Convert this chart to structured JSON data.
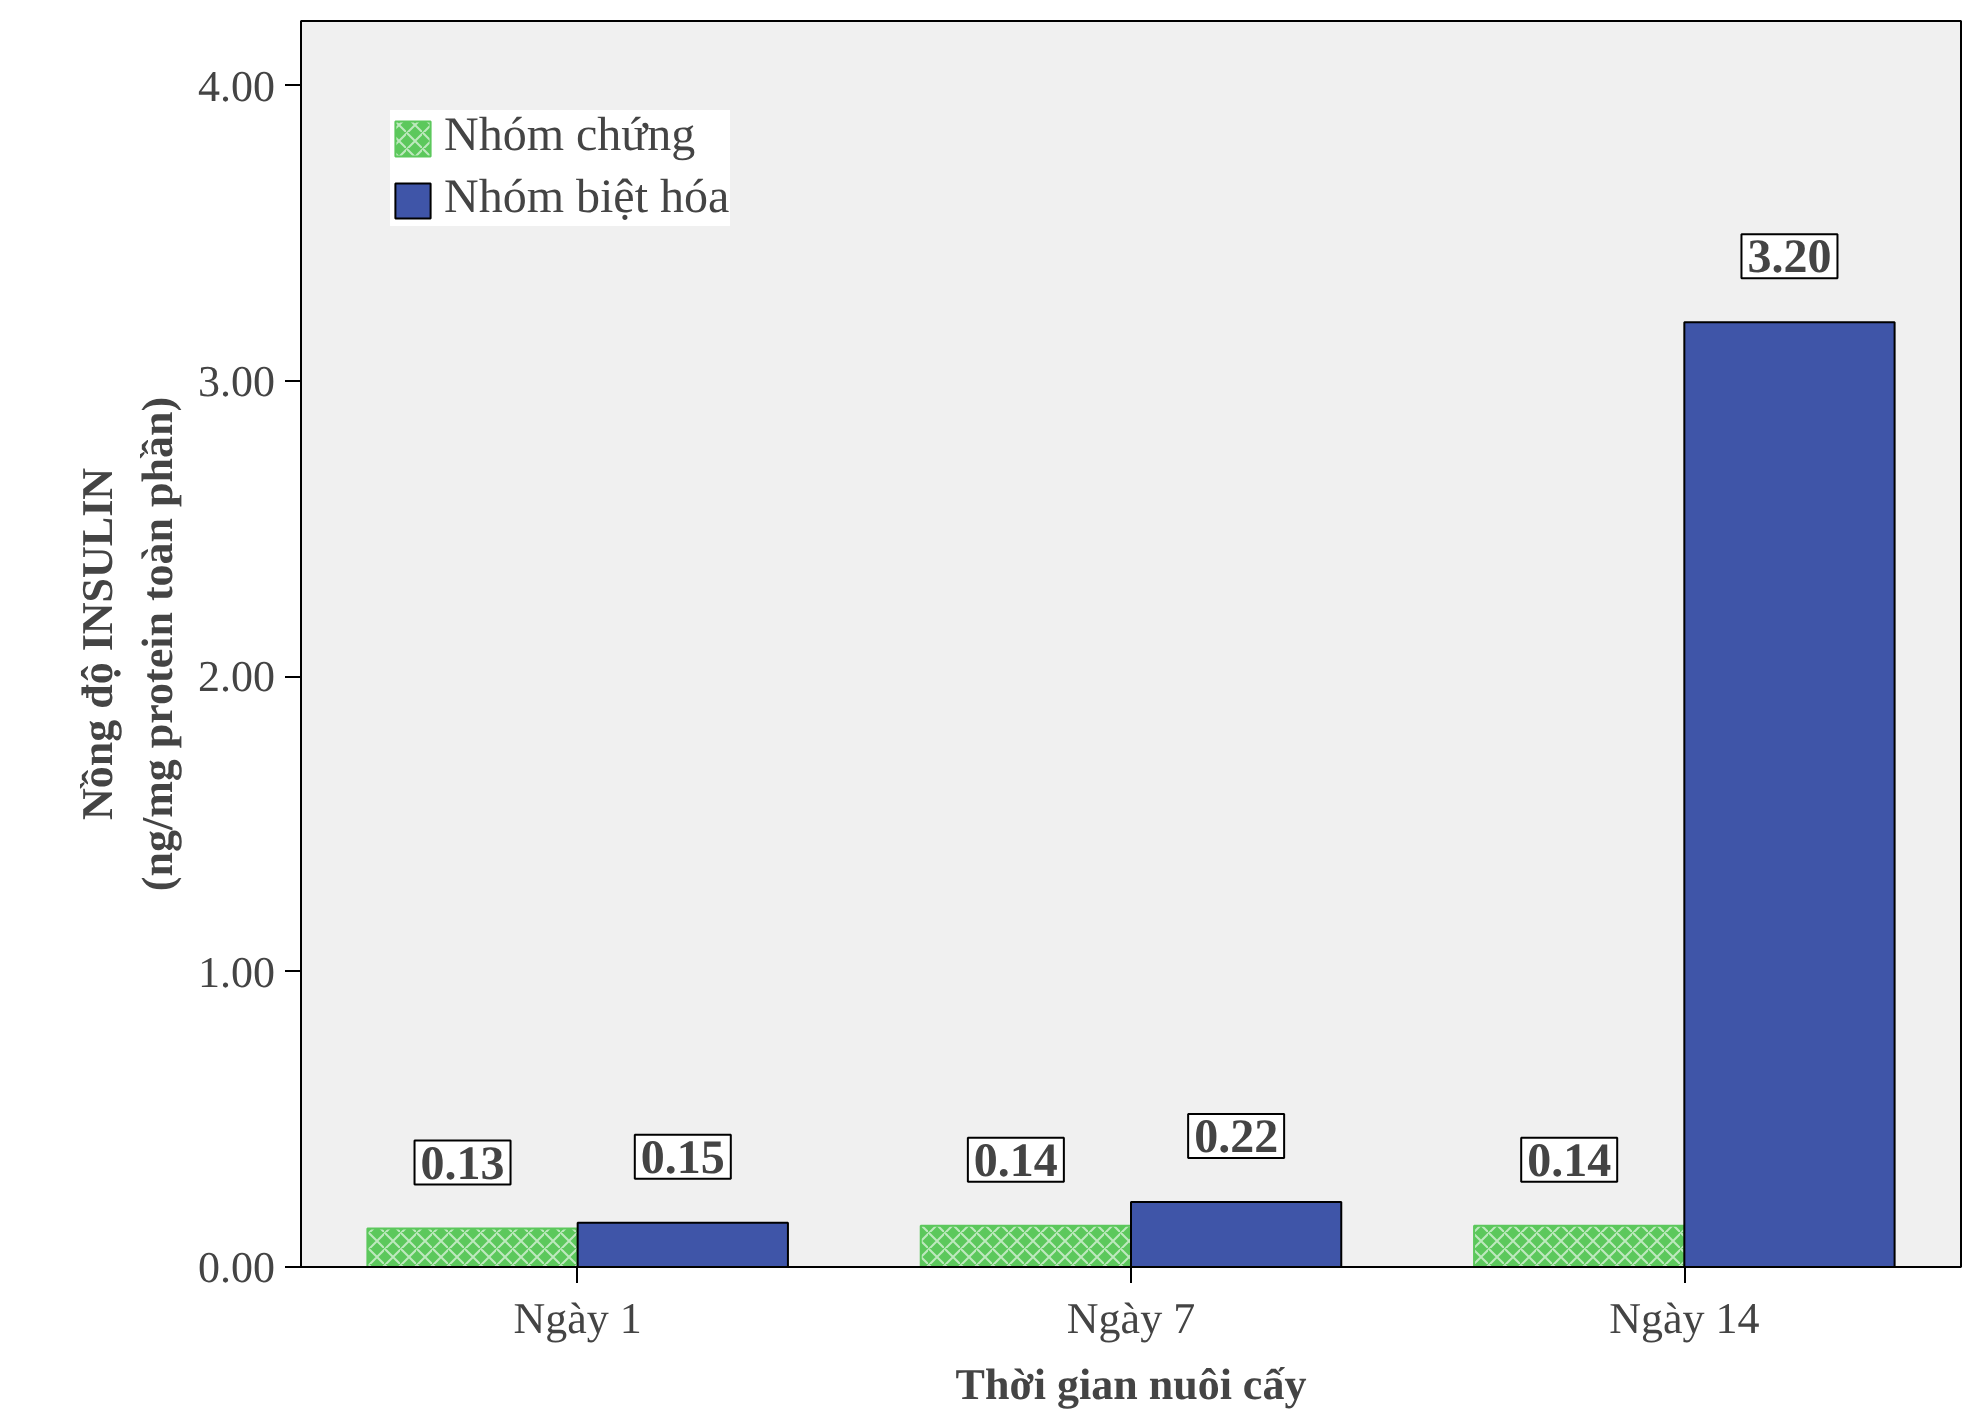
{
  "chart_data": {
    "type": "bar",
    "xlabel": "Thời gian nuôi cấy",
    "ylabel": "Nồng độ INSULIN\n(ng/mg protein toàn phần)",
    "categories": [
      "Ngày 1",
      "Ngày 7",
      "Ngày 14"
    ],
    "series": [
      {
        "name": "Nhóm chứng",
        "color": "#5cc85c",
        "values": [
          0.13,
          0.14,
          0.14
        ],
        "value_labels": [
          "0.13",
          "0.14",
          "0.14"
        ]
      },
      {
        "name": "Nhóm biệt hóa",
        "color": "#3f55a8",
        "values": [
          0.15,
          0.22,
          3.2
        ],
        "value_labels": [
          "0.15",
          "0.22",
          "3.20"
        ]
      }
    ],
    "ylim": [
      0,
      4.22
    ],
    "yticks": [
      {
        "value": 0,
        "label": "0.00"
      },
      {
        "value": 1,
        "label": "1.00"
      },
      {
        "value": 2,
        "label": "2.00"
      },
      {
        "value": 3,
        "label": "3.00"
      },
      {
        "value": 4,
        "label": "4.00"
      }
    ],
    "grid": false,
    "legend": "top left"
  }
}
